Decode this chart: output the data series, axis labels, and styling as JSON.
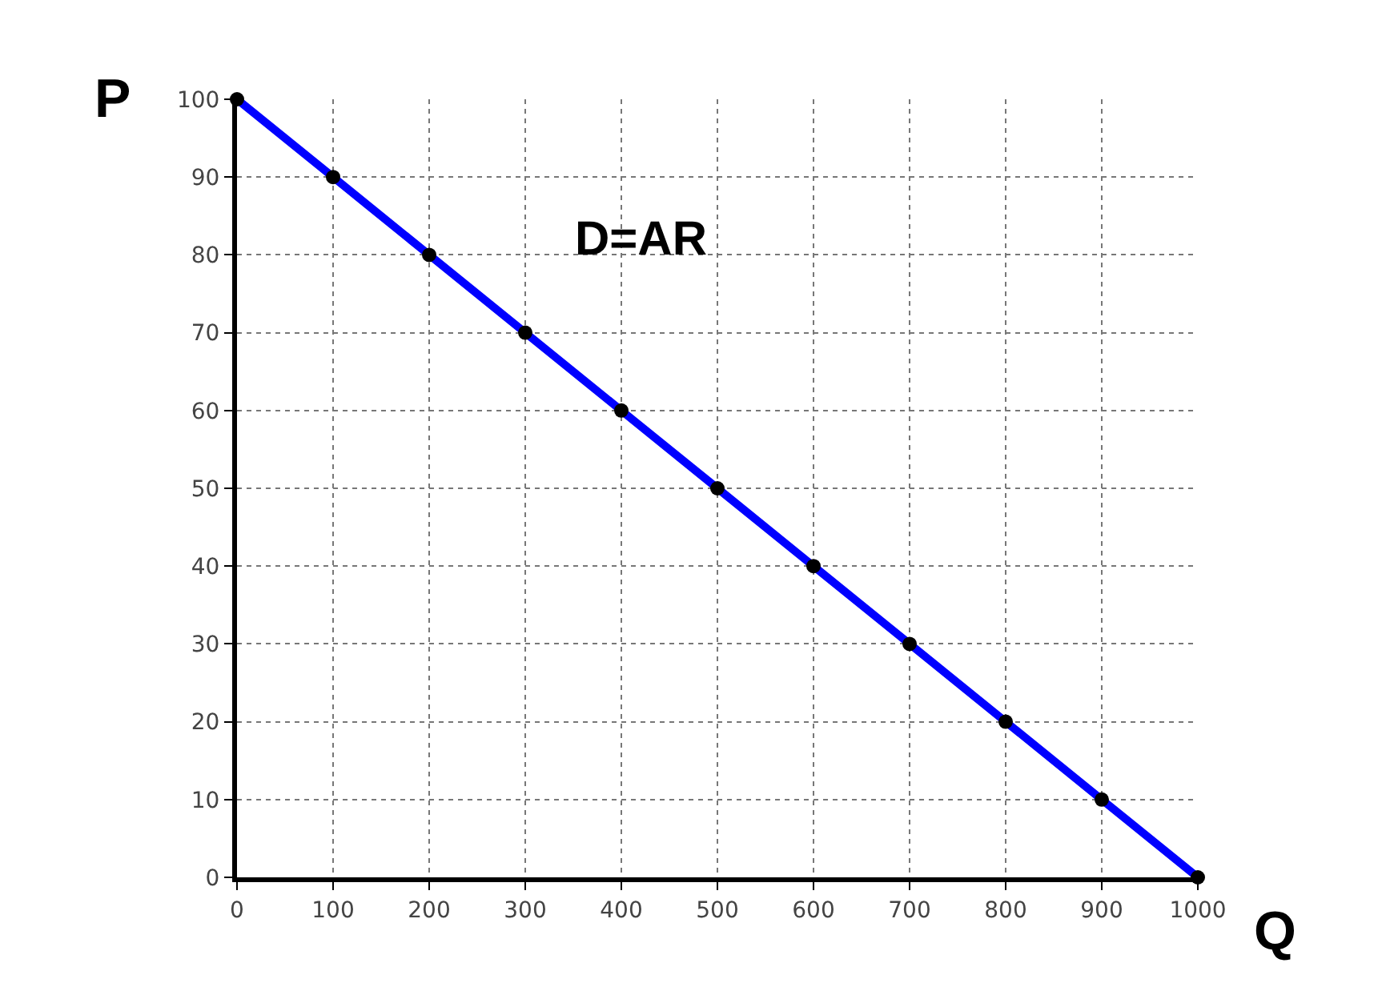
{
  "chart_data": {
    "type": "line",
    "xlabel": "Q",
    "ylabel": "P",
    "x": [
      0,
      100,
      200,
      300,
      400,
      500,
      600,
      700,
      800,
      900,
      1000
    ],
    "series": [
      {
        "name": "D=AR",
        "color": "#0000ff",
        "values": [
          100,
          90,
          80,
          70,
          60,
          50,
          40,
          30,
          20,
          10,
          0
        ]
      }
    ],
    "xlim": [
      0,
      1000
    ],
    "xticks": [
      0,
      100,
      200,
      300,
      400,
      500,
      600,
      700,
      800,
      900,
      1000
    ],
    "ylim": [
      0,
      100
    ],
    "yticks": [
      0,
      10,
      20,
      30,
      40,
      50,
      60,
      70,
      80,
      90,
      100
    ],
    "grid": true,
    "marker": "circle",
    "line_style": "solid"
  }
}
